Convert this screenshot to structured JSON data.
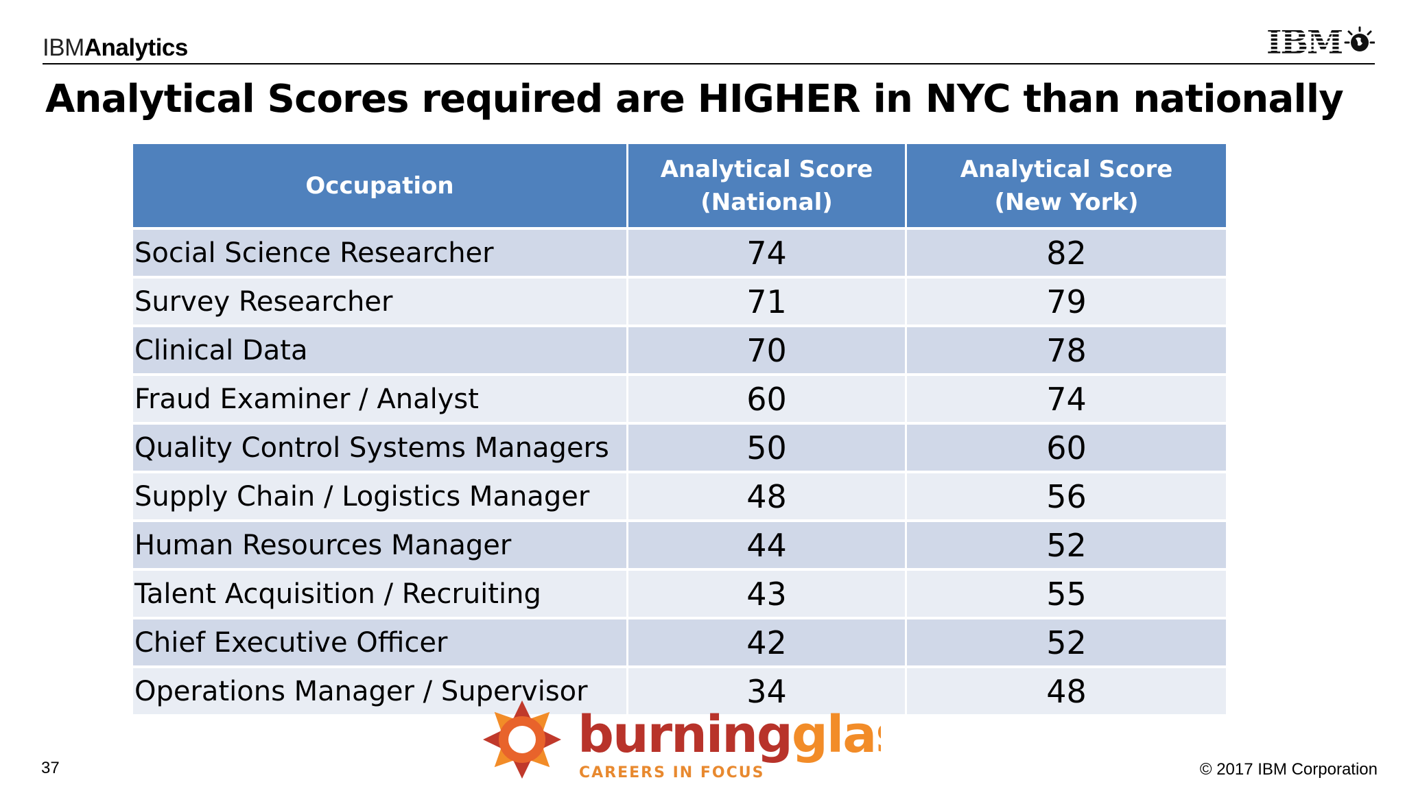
{
  "header": {
    "brand_light": "IBM",
    "brand_bold": "Analytics",
    "logo_text": "IBM"
  },
  "title": "Analytical Scores required are HIGHER in NYC than nationally",
  "table": {
    "headers": [
      {
        "line1": "Occupation",
        "line2": ""
      },
      {
        "line1": "Analytical Score",
        "line2": "(National)"
      },
      {
        "line1": "Analytical Score",
        "line2": "(New York)"
      }
    ],
    "rows": [
      {
        "occupation": "Social Science Researcher",
        "national": "74",
        "new_york": "82"
      },
      {
        "occupation": "Survey Researcher",
        "national": "71",
        "new_york": "79"
      },
      {
        "occupation": "Clinical Data",
        "national": "70",
        "new_york": "78"
      },
      {
        "occupation": "Fraud Examiner / Analyst",
        "national": "60",
        "new_york": "74"
      },
      {
        "occupation": "Quality Control Systems Managers",
        "national": "50",
        "new_york": "60"
      },
      {
        "occupation": "Supply Chain / Logistics Manager",
        "national": "48",
        "new_york": "56"
      },
      {
        "occupation": "Human Resources Manager",
        "national": "44",
        "new_york": "52"
      },
      {
        "occupation": "Talent Acquisition / Recruiting",
        "national": "43",
        "new_york": "55"
      },
      {
        "occupation": "Chief Executive Officer",
        "national": "42",
        "new_york": "52"
      },
      {
        "occupation": "Operations Manager / Supervisor",
        "national": "34",
        "new_york": "48"
      }
    ]
  },
  "source_logo": {
    "word_dark": "burning",
    "word_light": "glass",
    "tagline": "CAREERS IN FOCUS"
  },
  "footer": {
    "page_number": "37",
    "copyright": "© 2017 IBM Corporation"
  },
  "colors": {
    "header_fill": "#4f81bd",
    "row_odd": "#d0d8e8",
    "row_even": "#e9edf4",
    "brand_dark_red": "#c0392b",
    "brand_orange": "#f28c28"
  }
}
